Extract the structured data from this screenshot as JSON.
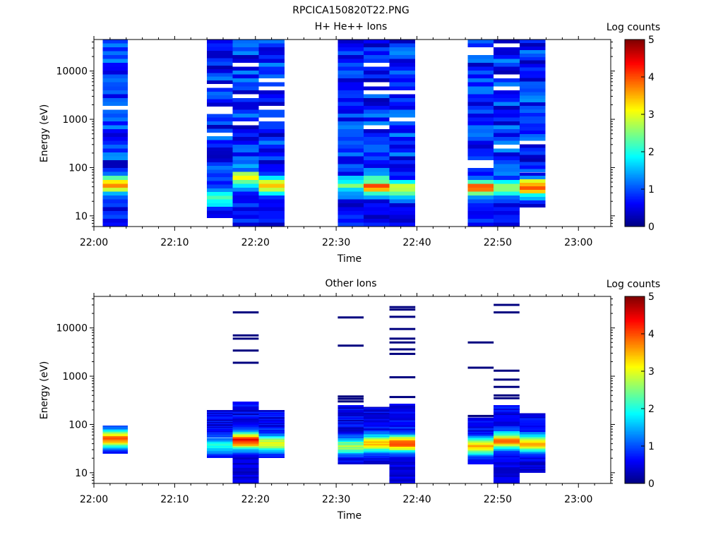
{
  "figure_title": "RPCICA150820T22.PNG",
  "colors": {
    "jet": [
      "#00007f",
      "#0000ff",
      "#007fff",
      "#00ffff",
      "#7fff7f",
      "#ffff00",
      "#ff7f00",
      "#ff0000",
      "#7f0000"
    ]
  },
  "chart_data": [
    {
      "type": "heatmap",
      "title": "H+ He++ Ions",
      "xlabel": "Time",
      "ylabel": "Energy (eV)",
      "x_ticks": [
        "22:00",
        "22:10",
        "22:20",
        "22:30",
        "22:40",
        "22:50",
        "23:00"
      ],
      "x_range_minutes": [
        0,
        64
      ],
      "y_scale": "log",
      "y_ticks": [
        "10",
        "100",
        "1000",
        "10000"
      ],
      "y_range": [
        6,
        45000
      ],
      "colorbar": {
        "label": "Log counts",
        "ticks": [
          "0",
          "1",
          "2",
          "3",
          "4",
          "5"
        ],
        "range": [
          0,
          5
        ]
      },
      "scans": [
        {
          "start": 1.1,
          "end": 4.2,
          "emin": 6,
          "emax": 45000,
          "peak_energy": 45,
          "peak_value": 3.0,
          "seed": 1
        },
        {
          "start": 14.0,
          "end": 17.2,
          "emin": 9,
          "emax": 45000,
          "peak_energy": 22,
          "peak_value": 1.6,
          "seed": 2
        },
        {
          "start": 17.2,
          "end": 20.4,
          "emin": 6,
          "emax": 45000,
          "peak_energy": 60,
          "peak_value": 2.2,
          "seed": 3
        },
        {
          "start": 20.4,
          "end": 23.6,
          "emin": 6,
          "emax": 45000,
          "peak_energy": 40,
          "peak_value": 2.4,
          "seed": 4
        },
        {
          "start": 30.2,
          "end": 33.4,
          "emin": 6,
          "emax": 45000,
          "peak_energy": 40,
          "peak_value": 1.5,
          "seed": 5
        },
        {
          "start": 33.4,
          "end": 36.6,
          "emin": 6,
          "emax": 45000,
          "peak_energy": 40,
          "peak_value": 3.0,
          "seed": 6
        },
        {
          "start": 36.6,
          "end": 39.8,
          "emin": 6,
          "emax": 45000,
          "peak_energy": 35,
          "peak_value": 2.2,
          "seed": 7
        },
        {
          "start": 46.3,
          "end": 49.5,
          "emin": 6,
          "emax": 45000,
          "peak_energy": 38,
          "peak_value": 3.0,
          "seed": 8
        },
        {
          "start": 49.5,
          "end": 52.7,
          "emin": 6,
          "emax": 45000,
          "peak_energy": 35,
          "peak_value": 1.8,
          "seed": 9
        },
        {
          "start": 52.7,
          "end": 55.9,
          "emin": 15,
          "emax": 45000,
          "peak_energy": 38,
          "peak_value": 3.2,
          "seed": 10
        }
      ]
    },
    {
      "type": "heatmap",
      "title": "Other Ions",
      "xlabel": "Time",
      "ylabel": "Energy (eV)",
      "x_ticks": [
        "22:00",
        "22:10",
        "22:20",
        "22:30",
        "22:40",
        "22:50",
        "23:00"
      ],
      "x_range_minutes": [
        0,
        64
      ],
      "y_scale": "log",
      "y_ticks": [
        "10",
        "100",
        "1000",
        "10000"
      ],
      "y_range": [
        6,
        45000
      ],
      "colorbar": {
        "label": "Log counts",
        "ticks": [
          "0",
          "1",
          "2",
          "3",
          "4",
          "5"
        ],
        "range": [
          0,
          5
        ]
      },
      "scans": [
        {
          "start": 1.1,
          "end": 4.2,
          "emin": 25,
          "emax": 95,
          "peak_energy": 50,
          "peak_value": 3.4,
          "seed": 11
        },
        {
          "start": 14.0,
          "end": 17.2,
          "emin": 20,
          "emax": 200,
          "peak_energy": 35,
          "peak_value": 1.4,
          "seed": 12
        },
        {
          "start": 17.2,
          "end": 20.4,
          "emin": 6,
          "emax": 300,
          "peak_energy": 45,
          "peak_value": 3.8,
          "seed": 13
        },
        {
          "start": 20.4,
          "end": 23.6,
          "emin": 20,
          "emax": 200,
          "peak_energy": 40,
          "peak_value": 2.5,
          "seed": 14
        },
        {
          "start": 30.2,
          "end": 33.4,
          "emin": 15,
          "emax": 250,
          "peak_energy": 35,
          "peak_value": 2.2,
          "seed": 15
        },
        {
          "start": 33.4,
          "end": 36.6,
          "emin": 15,
          "emax": 230,
          "peak_energy": 40,
          "peak_value": 2.9,
          "seed": 16
        },
        {
          "start": 36.6,
          "end": 39.8,
          "emin": 6,
          "emax": 270,
          "peak_energy": 40,
          "peak_value": 3.6,
          "seed": 17
        },
        {
          "start": 46.3,
          "end": 49.5,
          "emin": 15,
          "emax": 140,
          "peak_energy": 35,
          "peak_value": 2.9,
          "seed": 18
        },
        {
          "start": 49.5,
          "end": 52.7,
          "emin": 6,
          "emax": 250,
          "peak_energy": 45,
          "peak_value": 3.3,
          "seed": 19
        },
        {
          "start": 52.7,
          "end": 55.9,
          "emin": 10,
          "emax": 170,
          "peak_energy": 40,
          "peak_value": 3.1,
          "seed": 20
        }
      ],
      "sparse_lines": [
        {
          "start": 17.2,
          "end": 20.4,
          "energies": [
            21000,
            7000,
            6000,
            3400,
            1900
          ]
        },
        {
          "start": 30.2,
          "end": 33.4,
          "energies": [
            16500,
            4300,
            380,
            340,
            300
          ]
        },
        {
          "start": 36.6,
          "end": 39.8,
          "energies": [
            27000,
            24000,
            17000,
            9500,
            6000,
            5000,
            3600,
            2900,
            950,
            370
          ]
        },
        {
          "start": 46.3,
          "end": 49.5,
          "energies": [
            5000,
            1500,
            150
          ]
        },
        {
          "start": 49.5,
          "end": 52.7,
          "energies": [
            30000,
            21000,
            1300,
            850,
            600,
            400,
            350
          ]
        }
      ]
    }
  ]
}
